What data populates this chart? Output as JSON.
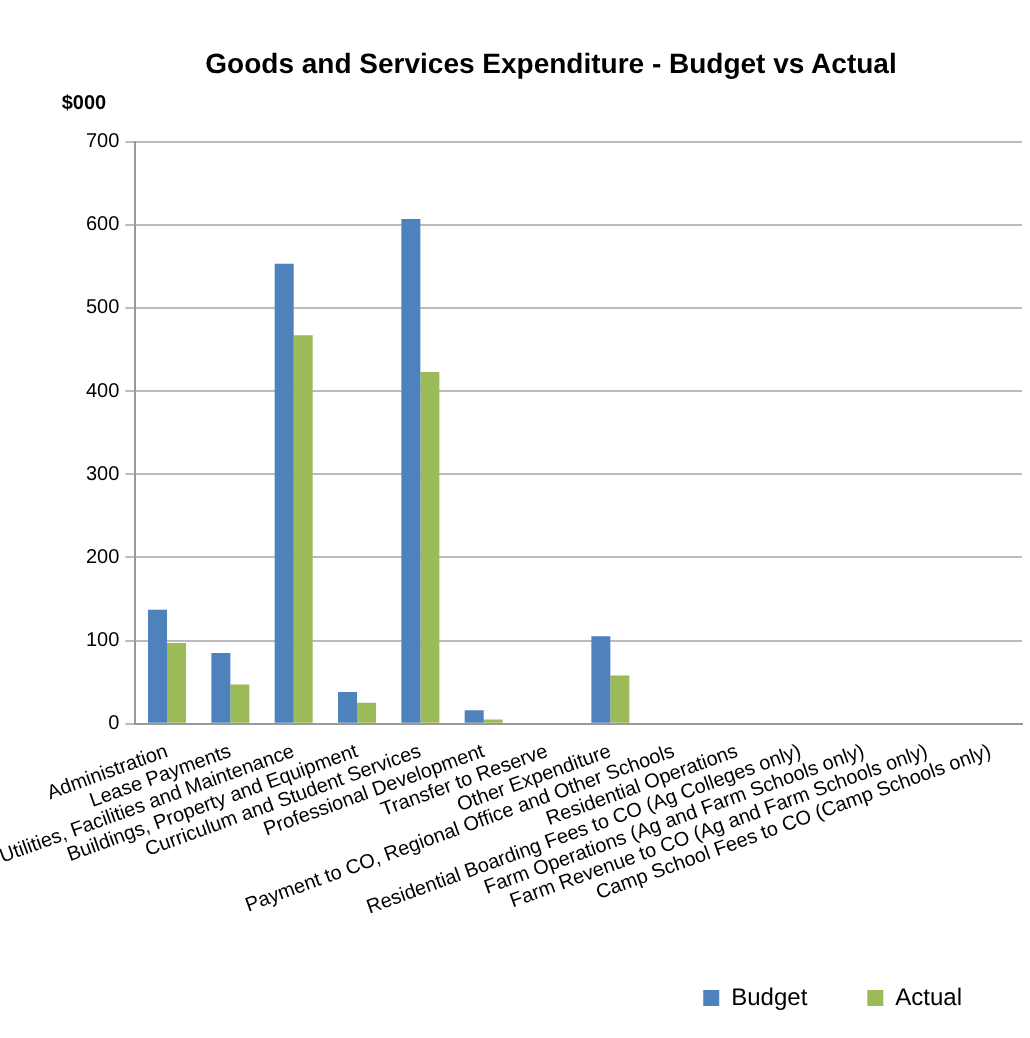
{
  "chart_data": {
    "type": "bar",
    "title": "Goods and Services Expenditure - Budget vs Actual",
    "ylabel": "$000",
    "categories": [
      "Administration",
      "Lease Payments",
      "Utilities, Facilities and Maintenance",
      "Buildings, Property and Equipment",
      "Curriculum and Student Services",
      "Professional Development",
      "Transfer to Reserve",
      "Other Expenditure",
      "Payment to CO, Regional Office and Other Schools",
      "Residential Operations",
      "Residential Boarding Fees to CO (Ag Colleges only)",
      "Farm Operations (Ag and Farm Schools only)",
      "Farm Revenue to CO (Ag and Farm Schools only)",
      "Camp School Fees to CO (Camp Schools only)"
    ],
    "series": [
      {
        "name": "Budget",
        "color": "#4f81bd",
        "values": [
          137,
          85,
          553,
          38,
          607,
          16,
          0,
          105,
          0,
          0,
          0,
          0,
          0,
          0
        ]
      },
      {
        "name": "Actual",
        "color": "#9bbb59",
        "values": [
          97,
          47,
          467,
          25,
          423,
          5,
          0,
          58,
          0,
          0,
          0,
          0,
          0,
          0
        ]
      }
    ],
    "ylim": [
      0,
      700
    ],
    "yticks": [
      0,
      100,
      200,
      300,
      400,
      500,
      600,
      700
    ],
    "grid": "y",
    "legend": "bottom right"
  }
}
